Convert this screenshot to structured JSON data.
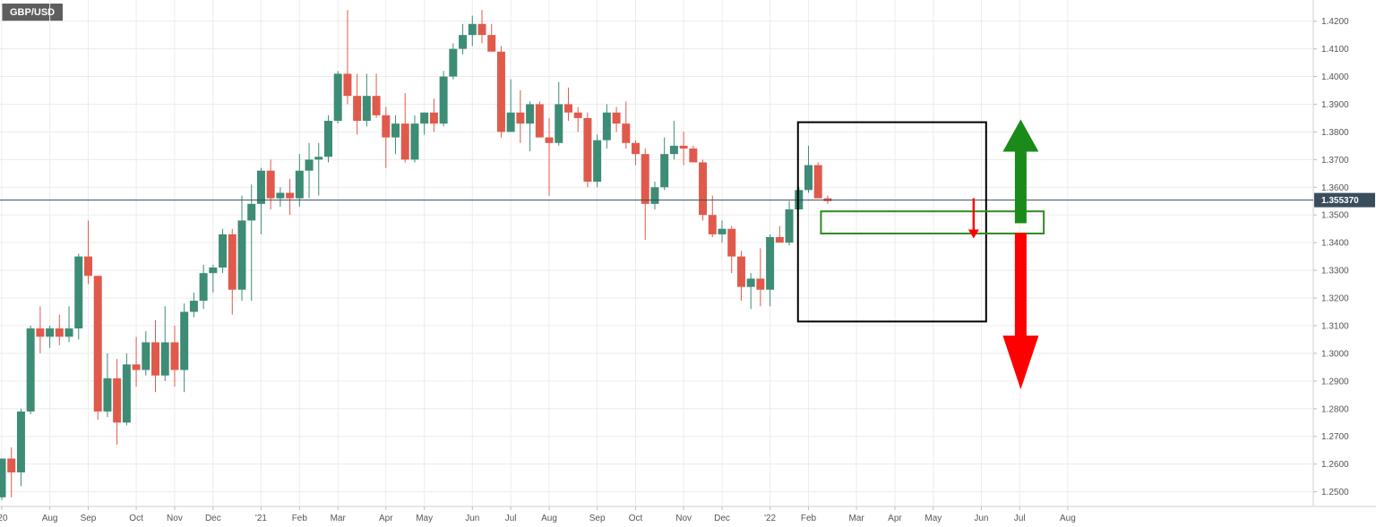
{
  "chart_data": {
    "type": "candlestick",
    "symbol": "GBP/USD",
    "timeframe": "weekly",
    "current_price": 1.35537,
    "current_price_label": "1.355370",
    "ylim": [
      1.246,
      1.427
    ],
    "y_ticks": [
      "1.2500",
      "1.2600",
      "1.2700",
      "1.2800",
      "1.2900",
      "1.3000",
      "1.3100",
      "1.3200",
      "1.3300",
      "1.3400",
      "1.3500",
      "1.3600",
      "1.3700",
      "1.3800",
      "1.3900",
      "1.4000",
      "1.4100",
      "1.4200"
    ],
    "x_labels": [
      "'20",
      "Aug",
      "Sep",
      "Oct",
      "Nov",
      "Dec",
      "'21",
      "Feb",
      "Mar",
      "Apr",
      "May",
      "Jun",
      "Jul",
      "Aug",
      "Sep",
      "Oct",
      "Nov",
      "Dec",
      "'22",
      "Feb",
      "Mar",
      "Apr",
      "May",
      "Jun",
      "Jul",
      "Aug"
    ],
    "grid": true,
    "colors": {
      "up": "#3d8c76",
      "down": "#e05a4c",
      "price_line": "#3b4d5c",
      "price_tag": "#3b4d5c",
      "grid": "#ececec",
      "box": "#000000",
      "zone": "#2e8b22",
      "arrow_up": "#1a8a1a",
      "arrow_down": "#ff0000"
    },
    "candles": [
      [
        1.248,
        1.262,
        1.247,
        1.262
      ],
      [
        1.262,
        1.266,
        1.248,
        1.257
      ],
      [
        1.257,
        1.28,
        1.252,
        1.279
      ],
      [
        1.279,
        1.31,
        1.278,
        1.309
      ],
      [
        1.309,
        1.317,
        1.3,
        1.306
      ],
      [
        1.306,
        1.31,
        1.302,
        1.309
      ],
      [
        1.309,
        1.314,
        1.303,
        1.306
      ],
      [
        1.306,
        1.317,
        1.304,
        1.309
      ],
      [
        1.309,
        1.336,
        1.305,
        1.335
      ],
      [
        1.335,
        1.348,
        1.325,
        1.328
      ],
      [
        1.328,
        1.328,
        1.276,
        1.279
      ],
      [
        1.279,
        1.3,
        1.277,
        1.291
      ],
      [
        1.291,
        1.298,
        1.267,
        1.275
      ],
      [
        1.275,
        1.3,
        1.274,
        1.296
      ],
      [
        1.296,
        1.306,
        1.288,
        1.294
      ],
      [
        1.294,
        1.308,
        1.292,
        1.304
      ],
      [
        1.304,
        1.312,
        1.286,
        1.292
      ],
      [
        1.292,
        1.317,
        1.29,
        1.304
      ],
      [
        1.304,
        1.31,
        1.288,
        1.294
      ],
      [
        1.294,
        1.318,
        1.286,
        1.315
      ],
      [
        1.315,
        1.322,
        1.313,
        1.319
      ],
      [
        1.319,
        1.332,
        1.316,
        1.329
      ],
      [
        1.329,
        1.332,
        1.322,
        1.331
      ],
      [
        1.331,
        1.345,
        1.329,
        1.343
      ],
      [
        1.343,
        1.345,
        1.314,
        1.323
      ],
      [
        1.323,
        1.357,
        1.319,
        1.348
      ],
      [
        1.348,
        1.361,
        1.319,
        1.354
      ],
      [
        1.354,
        1.367,
        1.343,
        1.366
      ],
      [
        1.366,
        1.37,
        1.352,
        1.356
      ],
      [
        1.356,
        1.36,
        1.353,
        1.358
      ],
      [
        1.358,
        1.363,
        1.35,
        1.356
      ],
      [
        1.356,
        1.372,
        1.353,
        1.366
      ],
      [
        1.366,
        1.376,
        1.356,
        1.37
      ],
      [
        1.37,
        1.376,
        1.357,
        1.371
      ],
      [
        1.371,
        1.386,
        1.369,
        1.384
      ],
      [
        1.384,
        1.402,
        1.383,
        1.401
      ],
      [
        1.401,
        1.424,
        1.39,
        1.393
      ],
      [
        1.393,
        1.401,
        1.379,
        1.384
      ],
      [
        1.384,
        1.401,
        1.382,
        1.393
      ],
      [
        1.393,
        1.401,
        1.385,
        1.386
      ],
      [
        1.386,
        1.389,
        1.367,
        1.378
      ],
      [
        1.378,
        1.386,
        1.372,
        1.383
      ],
      [
        1.383,
        1.394,
        1.369,
        1.37
      ],
      [
        1.37,
        1.386,
        1.369,
        1.383
      ],
      [
        1.383,
        1.387,
        1.379,
        1.387
      ],
      [
        1.387,
        1.392,
        1.38,
        1.383
      ],
      [
        1.383,
        1.402,
        1.382,
        1.4
      ],
      [
        1.4,
        1.412,
        1.399,
        1.41
      ],
      [
        1.41,
        1.419,
        1.408,
        1.415
      ],
      [
        1.415,
        1.422,
        1.411,
        1.419
      ],
      [
        1.419,
        1.424,
        1.412,
        1.415
      ],
      [
        1.415,
        1.419,
        1.409,
        1.409
      ],
      [
        1.409,
        1.411,
        1.378,
        1.38
      ],
      [
        1.38,
        1.399,
        1.38,
        1.387
      ],
      [
        1.387,
        1.395,
        1.376,
        1.383
      ],
      [
        1.383,
        1.391,
        1.373,
        1.39
      ],
      [
        1.39,
        1.391,
        1.378,
        1.378
      ],
      [
        1.378,
        1.385,
        1.357,
        1.376
      ],
      [
        1.376,
        1.398,
        1.375,
        1.39
      ],
      [
        1.39,
        1.396,
        1.384,
        1.387
      ],
      [
        1.387,
        1.389,
        1.38,
        1.385
      ],
      [
        1.385,
        1.387,
        1.36,
        1.362
      ],
      [
        1.362,
        1.379,
        1.36,
        1.377
      ],
      [
        1.377,
        1.39,
        1.374,
        1.387
      ],
      [
        1.387,
        1.389,
        1.38,
        1.383
      ],
      [
        1.383,
        1.391,
        1.374,
        1.376
      ],
      [
        1.376,
        1.377,
        1.368,
        1.372
      ],
      [
        1.372,
        1.374,
        1.341,
        1.354
      ],
      [
        1.354,
        1.362,
        1.352,
        1.36
      ],
      [
        1.36,
        1.378,
        1.359,
        1.372
      ],
      [
        1.372,
        1.384,
        1.37,
        1.375
      ],
      [
        1.375,
        1.38,
        1.368,
        1.374
      ],
      [
        1.374,
        1.375,
        1.369,
        1.369
      ],
      [
        1.369,
        1.37,
        1.348,
        1.35
      ],
      [
        1.35,
        1.357,
        1.342,
        1.343
      ],
      [
        1.343,
        1.348,
        1.34,
        1.345
      ],
      [
        1.345,
        1.346,
        1.329,
        1.335
      ],
      [
        1.335,
        1.337,
        1.319,
        1.324
      ],
      [
        1.324,
        1.329,
        1.316,
        1.327
      ],
      [
        1.327,
        1.338,
        1.317,
        1.323
      ],
      [
        1.323,
        1.343,
        1.317,
        1.342
      ],
      [
        1.342,
        1.346,
        1.34,
        1.34
      ],
      [
        1.34,
        1.355,
        1.339,
        1.352
      ],
      [
        1.352,
        1.36,
        1.352,
        1.359
      ],
      [
        1.359,
        1.375,
        1.358,
        1.368
      ],
      [
        1.368,
        1.369,
        1.356,
        1.356
      ],
      [
        1.356,
        1.357,
        1.354,
        1.355
      ]
    ],
    "annotations": {
      "box": {
        "price_top": 1.3835,
        "price_bottom": 1.3115
      },
      "zone": {
        "price_top": 1.3513,
        "price_bottom": 1.3433
      },
      "small_arrow": "down",
      "large_up_arrow": "up",
      "large_down_arrow": "down"
    }
  }
}
